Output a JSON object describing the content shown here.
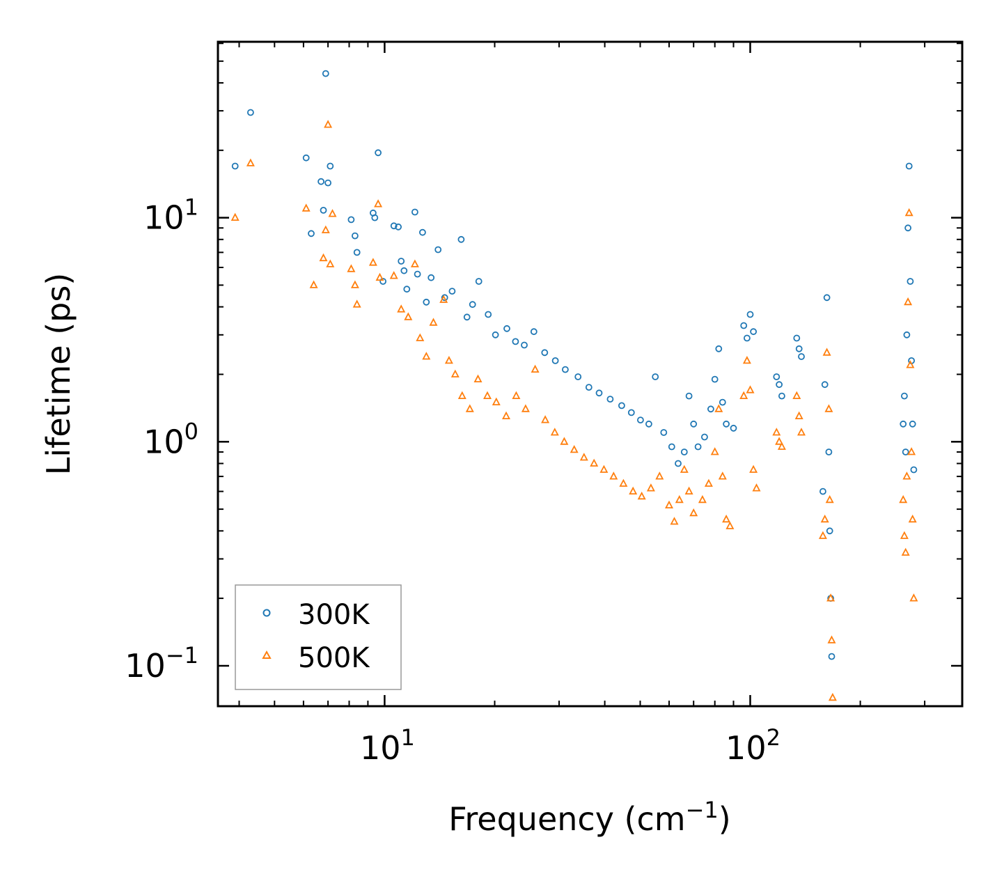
{
  "chart_data": {
    "type": "scatter",
    "title": "",
    "xlabel": "Frequency (cm",
    "xlabel_sup": "−1",
    "xlabel_suffix": ")",
    "ylabel": "Lifetime (ps)",
    "xscale": "log",
    "yscale": "log",
    "xlim": [
      3.5,
      380
    ],
    "ylim": [
      0.066,
      61
    ],
    "x_ticks": [
      {
        "value": 10,
        "base": "10",
        "exp": "1"
      },
      {
        "value": 100,
        "base": "10",
        "exp": "2"
      }
    ],
    "y_ticks": [
      {
        "value": 0.1,
        "base": "10",
        "exp": "−1"
      },
      {
        "value": 1,
        "base": "10",
        "exp": "0"
      },
      {
        "value": 10,
        "base": "10",
        "exp": "1"
      }
    ],
    "legend_position": "lower-left",
    "series": [
      {
        "name": "300K",
        "marker": "circle",
        "color": "#1f77b4",
        "points": [
          [
            3.9,
            17.0
          ],
          [
            4.3,
            29.5
          ],
          [
            6.1,
            18.5
          ],
          [
            6.3,
            8.5
          ],
          [
            6.7,
            14.5
          ],
          [
            6.8,
            10.8
          ],
          [
            6.9,
            44.0
          ],
          [
            7.0,
            14.3
          ],
          [
            7.1,
            17.0
          ],
          [
            8.1,
            9.8
          ],
          [
            8.3,
            8.3
          ],
          [
            8.4,
            7.0
          ],
          [
            9.3,
            10.5
          ],
          [
            9.4,
            10.0
          ],
          [
            9.6,
            19.5
          ],
          [
            9.9,
            5.2
          ],
          [
            10.6,
            9.2
          ],
          [
            10.9,
            9.1
          ],
          [
            11.1,
            6.4
          ],
          [
            11.3,
            5.8
          ],
          [
            11.5,
            4.8
          ],
          [
            12.1,
            10.6
          ],
          [
            12.3,
            5.6
          ],
          [
            12.7,
            8.6
          ],
          [
            13.0,
            4.2
          ],
          [
            13.4,
            5.4
          ],
          [
            14.0,
            7.2
          ],
          [
            14.6,
            4.4
          ],
          [
            15.3,
            4.7
          ],
          [
            16.2,
            8.0
          ],
          [
            16.8,
            3.6
          ],
          [
            17.4,
            4.1
          ],
          [
            18.1,
            5.2
          ],
          [
            19.2,
            3.7
          ],
          [
            20.1,
            3.0
          ],
          [
            21.6,
            3.2
          ],
          [
            22.8,
            2.8
          ],
          [
            24.1,
            2.7
          ],
          [
            25.6,
            3.1
          ],
          [
            27.4,
            2.5
          ],
          [
            29.3,
            2.3
          ],
          [
            31.2,
            2.1
          ],
          [
            33.8,
            1.95
          ],
          [
            36.2,
            1.75
          ],
          [
            38.6,
            1.65
          ],
          [
            41.4,
            1.55
          ],
          [
            44.5,
            1.45
          ],
          [
            47.3,
            1.35
          ],
          [
            50.1,
            1.25
          ],
          [
            52.8,
            1.2
          ],
          [
            55.0,
            1.95
          ],
          [
            58.0,
            1.1
          ],
          [
            61.0,
            0.95
          ],
          [
            63.5,
            0.8
          ],
          [
            66.0,
            0.9
          ],
          [
            68.0,
            1.6
          ],
          [
            70.0,
            1.2
          ],
          [
            72.0,
            0.95
          ],
          [
            75.0,
            1.05
          ],
          [
            78.0,
            1.4
          ],
          [
            80.0,
            1.9
          ],
          [
            82.0,
            2.6
          ],
          [
            84.0,
            1.5
          ],
          [
            86.0,
            1.2
          ],
          [
            90.0,
            1.15
          ],
          [
            96.0,
            3.3
          ],
          [
            98.0,
            2.9
          ],
          [
            100.0,
            3.7
          ],
          [
            102.0,
            3.1
          ],
          [
            118.0,
            1.95
          ],
          [
            120.0,
            1.8
          ],
          [
            122.0,
            1.6
          ],
          [
            134.0,
            2.9
          ],
          [
            136.0,
            2.6
          ],
          [
            138.0,
            2.4
          ],
          [
            158.0,
            0.6
          ],
          [
            160.0,
            1.8
          ],
          [
            162.0,
            4.4
          ],
          [
            164.0,
            0.9
          ],
          [
            165.0,
            0.4
          ],
          [
            166.0,
            0.2
          ],
          [
            167.0,
            0.11
          ],
          [
            262.0,
            1.2
          ],
          [
            264.0,
            1.6
          ],
          [
            266.0,
            0.9
          ],
          [
            268.0,
            3.0
          ],
          [
            270.0,
            9.0
          ],
          [
            272.0,
            17.0
          ],
          [
            274.0,
            5.2
          ],
          [
            276.0,
            2.3
          ],
          [
            278.0,
            1.2
          ],
          [
            280.0,
            0.75
          ]
        ]
      },
      {
        "name": "500K",
        "marker": "triangle",
        "color": "#ff7f0e",
        "points": [
          [
            3.9,
            10.0
          ],
          [
            4.3,
            17.5
          ],
          [
            6.1,
            11.0
          ],
          [
            6.4,
            5.0
          ],
          [
            6.8,
            6.6
          ],
          [
            6.9,
            8.8
          ],
          [
            7.0,
            26.0
          ],
          [
            7.1,
            6.2
          ],
          [
            7.2,
            10.4
          ],
          [
            8.1,
            5.9
          ],
          [
            8.3,
            5.0
          ],
          [
            8.4,
            4.1
          ],
          [
            9.3,
            6.3
          ],
          [
            9.6,
            11.5
          ],
          [
            9.7,
            5.4
          ],
          [
            10.6,
            5.5
          ],
          [
            11.1,
            3.9
          ],
          [
            11.6,
            3.6
          ],
          [
            12.1,
            6.2
          ],
          [
            12.5,
            2.9
          ],
          [
            13.0,
            2.4
          ],
          [
            13.6,
            3.4
          ],
          [
            14.5,
            4.3
          ],
          [
            15.0,
            2.3
          ],
          [
            15.6,
            2.0
          ],
          [
            16.3,
            1.6
          ],
          [
            17.1,
            1.4
          ],
          [
            18.0,
            1.9
          ],
          [
            19.1,
            1.6
          ],
          [
            20.2,
            1.5
          ],
          [
            21.5,
            1.3
          ],
          [
            22.9,
            1.6
          ],
          [
            24.3,
            1.4
          ],
          [
            25.8,
            2.1
          ],
          [
            27.5,
            1.25
          ],
          [
            29.2,
            1.1
          ],
          [
            31.0,
            1.0
          ],
          [
            33.0,
            0.92
          ],
          [
            35.1,
            0.85
          ],
          [
            37.4,
            0.8
          ],
          [
            39.8,
            0.75
          ],
          [
            42.3,
            0.7
          ],
          [
            45.0,
            0.65
          ],
          [
            47.8,
            0.6
          ],
          [
            50.5,
            0.57
          ],
          [
            53.5,
            0.62
          ],
          [
            56.5,
            0.7
          ],
          [
            60.0,
            0.52
          ],
          [
            62.0,
            0.44
          ],
          [
            64.0,
            0.55
          ],
          [
            66.0,
            0.75
          ],
          [
            68.0,
            0.6
          ],
          [
            70.0,
            0.48
          ],
          [
            74.0,
            0.55
          ],
          [
            77.0,
            0.65
          ],
          [
            80.0,
            0.9
          ],
          [
            82.0,
            1.4
          ],
          [
            84.0,
            0.7
          ],
          [
            86.0,
            0.45
          ],
          [
            88.0,
            0.42
          ],
          [
            96.0,
            1.6
          ],
          [
            98.0,
            2.3
          ],
          [
            100.0,
            1.7
          ],
          [
            102.0,
            0.75
          ],
          [
            104.0,
            0.62
          ],
          [
            118.0,
            1.1
          ],
          [
            120.0,
            1.0
          ],
          [
            122.0,
            0.95
          ],
          [
            134.0,
            1.6
          ],
          [
            136.0,
            1.3
          ],
          [
            138.0,
            1.1
          ],
          [
            158.0,
            0.38
          ],
          [
            160.0,
            0.45
          ],
          [
            162.0,
            2.5
          ],
          [
            164.0,
            1.4
          ],
          [
            165.0,
            0.55
          ],
          [
            166.0,
            0.2
          ],
          [
            167.0,
            0.13
          ],
          [
            168.0,
            0.072
          ],
          [
            262.0,
            0.55
          ],
          [
            264.0,
            0.38
          ],
          [
            266.0,
            0.32
          ],
          [
            268.0,
            0.7
          ],
          [
            270.0,
            4.2
          ],
          [
            272.0,
            10.5
          ],
          [
            274.0,
            2.2
          ],
          [
            276.0,
            0.9
          ],
          [
            278.0,
            0.45
          ],
          [
            280.0,
            0.2
          ]
        ]
      }
    ]
  }
}
